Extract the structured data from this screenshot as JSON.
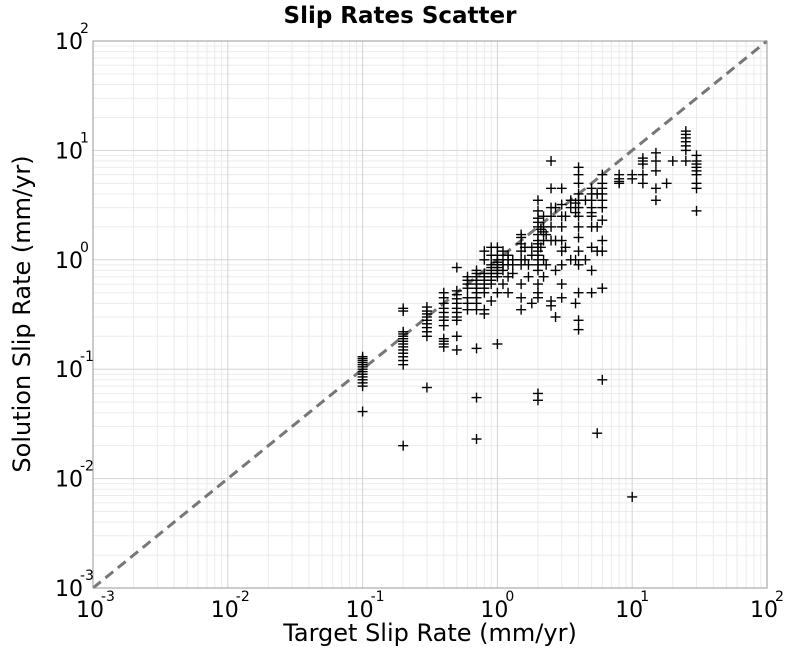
{
  "chart_data": {
    "type": "scatter",
    "title": "Slip Rates Scatter",
    "xlabel": "Target Slip Rate (mm/yr)",
    "ylabel": "Solution Slip Rate (mm/yr)",
    "xscale": "log",
    "yscale": "log",
    "xlim": [
      0.001,
      100
    ],
    "ylim": [
      0.001,
      100
    ],
    "grid": true,
    "legend": "none",
    "marker": "+",
    "marker_color": "#000000",
    "reference_line": {
      "style": "dashed",
      "color": "#777777",
      "from": [
        0.001,
        0.001
      ],
      "to": [
        100,
        100
      ]
    },
    "ticks": [
      {
        "base": "10",
        "exp": "-3",
        "value": 0.001
      },
      {
        "base": "10",
        "exp": "-2",
        "value": 0.01
      },
      {
        "base": "10",
        "exp": "-1",
        "value": 0.1
      },
      {
        "base": "10",
        "exp": "0",
        "value": 1
      },
      {
        "base": "10",
        "exp": "1",
        "value": 10
      },
      {
        "base": "10",
        "exp": "2",
        "value": 100
      }
    ],
    "points": [
      [
        0.1,
        0.07
      ],
      [
        0.1,
        0.075
      ],
      [
        0.1,
        0.08
      ],
      [
        0.1,
        0.085
      ],
      [
        0.1,
        0.09
      ],
      [
        0.1,
        0.095
      ],
      [
        0.1,
        0.1
      ],
      [
        0.1,
        0.105
      ],
      [
        0.1,
        0.11
      ],
      [
        0.1,
        0.115
      ],
      [
        0.1,
        0.12
      ],
      [
        0.1,
        0.125
      ],
      [
        0.1,
        0.13
      ],
      [
        0.1,
        0.041
      ],
      [
        0.2,
        0.13
      ],
      [
        0.2,
        0.14
      ],
      [
        0.2,
        0.15
      ],
      [
        0.2,
        0.16
      ],
      [
        0.2,
        0.17
      ],
      [
        0.2,
        0.18
      ],
      [
        0.2,
        0.19
      ],
      [
        0.2,
        0.2
      ],
      [
        0.2,
        0.21
      ],
      [
        0.2,
        0.22
      ],
      [
        0.2,
        0.34
      ],
      [
        0.2,
        0.36
      ],
      [
        0.2,
        0.11
      ],
      [
        0.2,
        0.12
      ],
      [
        0.2,
        0.02
      ],
      [
        0.3,
        0.22
      ],
      [
        0.3,
        0.24
      ],
      [
        0.3,
        0.26
      ],
      [
        0.3,
        0.28
      ],
      [
        0.3,
        0.3
      ],
      [
        0.3,
        0.32
      ],
      [
        0.3,
        0.34
      ],
      [
        0.3,
        0.37
      ],
      [
        0.3,
        0.2
      ],
      [
        0.3,
        0.068
      ],
      [
        0.4,
        0.25
      ],
      [
        0.4,
        0.28
      ],
      [
        0.4,
        0.3
      ],
      [
        0.4,
        0.33
      ],
      [
        0.4,
        0.36
      ],
      [
        0.4,
        0.4
      ],
      [
        0.4,
        0.45
      ],
      [
        0.4,
        0.5
      ],
      [
        0.4,
        0.19
      ],
      [
        0.4,
        0.16
      ],
      [
        0.4,
        0.17
      ],
      [
        0.4,
        0.18
      ],
      [
        0.5,
        0.28
      ],
      [
        0.5,
        0.3
      ],
      [
        0.5,
        0.33
      ],
      [
        0.5,
        0.36
      ],
      [
        0.5,
        0.4
      ],
      [
        0.5,
        0.44
      ],
      [
        0.5,
        0.48
      ],
      [
        0.5,
        0.52
      ],
      [
        0.5,
        0.85
      ],
      [
        0.5,
        0.2
      ],
      [
        0.5,
        0.15
      ],
      [
        0.6,
        0.35
      ],
      [
        0.6,
        0.4
      ],
      [
        0.6,
        0.45
      ],
      [
        0.6,
        0.55
      ],
      [
        0.6,
        0.6
      ],
      [
        0.6,
        0.65
      ],
      [
        0.6,
        0.7
      ],
      [
        0.7,
        0.4
      ],
      [
        0.7,
        0.45
      ],
      [
        0.7,
        0.5
      ],
      [
        0.7,
        0.55
      ],
      [
        0.7,
        0.6
      ],
      [
        0.7,
        0.65
      ],
      [
        0.7,
        0.7
      ],
      [
        0.7,
        0.75
      ],
      [
        0.7,
        0.8
      ],
      [
        0.7,
        0.35
      ],
      [
        0.7,
        0.055
      ],
      [
        0.7,
        0.023
      ],
      [
        0.7,
        0.155
      ],
      [
        0.8,
        0.5
      ],
      [
        0.8,
        0.55
      ],
      [
        0.8,
        0.6
      ],
      [
        0.8,
        0.65
      ],
      [
        0.8,
        0.7
      ],
      [
        0.8,
        0.75
      ],
      [
        0.8,
        1.0
      ],
      [
        0.8,
        1.2
      ],
      [
        0.8,
        0.35
      ],
      [
        0.8,
        0.32
      ],
      [
        0.9,
        0.6
      ],
      [
        0.9,
        0.65
      ],
      [
        0.9,
        0.7
      ],
      [
        0.9,
        0.75
      ],
      [
        0.9,
        0.8
      ],
      [
        0.9,
        0.85
      ],
      [
        0.9,
        0.9
      ],
      [
        0.9,
        1.1
      ],
      [
        0.9,
        1.3
      ],
      [
        0.9,
        0.42
      ],
      [
        1.0,
        0.7
      ],
      [
        1.0,
        0.75
      ],
      [
        1.0,
        0.8
      ],
      [
        1.0,
        0.85
      ],
      [
        1.0,
        0.9
      ],
      [
        1.0,
        0.95
      ],
      [
        1.0,
        1.0
      ],
      [
        1.0,
        1.1
      ],
      [
        1.0,
        1.3
      ],
      [
        1.0,
        0.5
      ],
      [
        1.0,
        0.17
      ],
      [
        1.1,
        0.8
      ],
      [
        1.1,
        0.9
      ],
      [
        1.1,
        1.0
      ],
      [
        1.1,
        1.2
      ],
      [
        1.1,
        0.6
      ],
      [
        1.2,
        0.9
      ],
      [
        1.2,
        1.0
      ],
      [
        1.2,
        1.1
      ],
      [
        1.2,
        0.7
      ],
      [
        1.2,
        0.5
      ],
      [
        1.3,
        0.75
      ],
      [
        1.3,
        0.9
      ],
      [
        1.3,
        1.0
      ],
      [
        1.5,
        0.9
      ],
      [
        1.5,
        1.0
      ],
      [
        1.5,
        1.2
      ],
      [
        1.5,
        1.4
      ],
      [
        1.5,
        1.6
      ],
      [
        1.5,
        1.7
      ],
      [
        1.5,
        0.6
      ],
      [
        1.5,
        0.35
      ],
      [
        1.5,
        0.45
      ],
      [
        1.6,
        1.0
      ],
      [
        1.6,
        1.3
      ],
      [
        1.7,
        0.7
      ],
      [
        1.7,
        0.9
      ],
      [
        1.8,
        0.4
      ],
      [
        1.8,
        1.1
      ],
      [
        1.8,
        1.3
      ],
      [
        2.0,
        0.8
      ],
      [
        2.0,
        0.9
      ],
      [
        2.0,
        1.0
      ],
      [
        2.0,
        1.1
      ],
      [
        2.0,
        1.2
      ],
      [
        2.0,
        1.3
      ],
      [
        2.0,
        1.4
      ],
      [
        2.0,
        1.5
      ],
      [
        2.0,
        1.7
      ],
      [
        2.0,
        2.0
      ],
      [
        2.0,
        2.2
      ],
      [
        2.0,
        2.4
      ],
      [
        2.0,
        2.8
      ],
      [
        2.0,
        3.5
      ],
      [
        2.0,
        0.6
      ],
      [
        2.0,
        0.5
      ],
      [
        2.0,
        0.45
      ],
      [
        2.0,
        0.06
      ],
      [
        2.0,
        0.052
      ],
      [
        2.1,
        1.3
      ],
      [
        2.1,
        1.9
      ],
      [
        2.2,
        1.0
      ],
      [
        2.2,
        1.5
      ],
      [
        2.2,
        2.0
      ],
      [
        2.2,
        2.5
      ],
      [
        2.2,
        0.7
      ],
      [
        2.2,
        1.8
      ],
      [
        2.3,
        0.9
      ],
      [
        2.3,
        1.7
      ],
      [
        2.5,
        0.38
      ],
      [
        2.5,
        0.42
      ],
      [
        2.5,
        1.5
      ],
      [
        2.5,
        2.0
      ],
      [
        2.5,
        2.5
      ],
      [
        2.5,
        3.0
      ],
      [
        2.5,
        4.5
      ],
      [
        2.5,
        8.0
      ],
      [
        2.7,
        0.3
      ],
      [
        2.7,
        0.8
      ],
      [
        2.7,
        1.5
      ],
      [
        2.7,
        3.0
      ],
      [
        3.0,
        0.6
      ],
      [
        3.0,
        0.9
      ],
      [
        3.0,
        1.2
      ],
      [
        3.0,
        1.5
      ],
      [
        3.0,
        2.0
      ],
      [
        3.0,
        2.5
      ],
      [
        3.0,
        3.2
      ],
      [
        3.0,
        4.5
      ],
      [
        3.0,
        0.45
      ],
      [
        3.2,
        1.3
      ],
      [
        3.2,
        2.5
      ],
      [
        3.5,
        1.0
      ],
      [
        3.5,
        3.0
      ],
      [
        3.5,
        3.5
      ],
      [
        3.8,
        0.4
      ],
      [
        3.8,
        1.0
      ],
      [
        3.8,
        2.7
      ],
      [
        3.8,
        3.3
      ],
      [
        4.0,
        0.28
      ],
      [
        4.0,
        0.5
      ],
      [
        4.0,
        0.9
      ],
      [
        4.0,
        1.2
      ],
      [
        4.0,
        1.6
      ],
      [
        4.0,
        2.0
      ],
      [
        4.0,
        2.5
      ],
      [
        4.0,
        3.0
      ],
      [
        4.0,
        3.5
      ],
      [
        4.0,
        4.0
      ],
      [
        4.0,
        5.0
      ],
      [
        4.0,
        6.0
      ],
      [
        4.0,
        7.0
      ],
      [
        4.0,
        0.23
      ],
      [
        4.5,
        1.0
      ],
      [
        4.5,
        3.5
      ],
      [
        5.0,
        0.8
      ],
      [
        5.0,
        1.3
      ],
      [
        5.0,
        2.0
      ],
      [
        5.0,
        2.5
      ],
      [
        5.0,
        3.0
      ],
      [
        5.0,
        3.5
      ],
      [
        5.0,
        4.0
      ],
      [
        5.0,
        4.5
      ],
      [
        5.0,
        0.5
      ],
      [
        5.0,
        2.7
      ],
      [
        5.5,
        1.2
      ],
      [
        5.5,
        2.0
      ],
      [
        5.5,
        4.0
      ],
      [
        5.5,
        0.026
      ],
      [
        6.0,
        1.5
      ],
      [
        6.0,
        2.3
      ],
      [
        6.0,
        3.0
      ],
      [
        6.0,
        3.5
      ],
      [
        6.0,
        4.0
      ],
      [
        6.0,
        4.5
      ],
      [
        6.0,
        5.0
      ],
      [
        6.0,
        6.0
      ],
      [
        6.0,
        0.55
      ],
      [
        6.0,
        0.08
      ],
      [
        6.0,
        1.2
      ],
      [
        8.0,
        5.0
      ],
      [
        8.0,
        5.5
      ],
      [
        8.0,
        6.0
      ],
      [
        8.0,
        5.2
      ],
      [
        10.0,
        5.5
      ],
      [
        10.0,
        6.0
      ],
      [
        10.0,
        0.0068
      ],
      [
        12.0,
        7.5
      ],
      [
        12.0,
        8.0
      ],
      [
        12.0,
        8.5
      ],
      [
        12.0,
        6.0
      ],
      [
        12.0,
        5.0
      ],
      [
        15.0,
        8.0
      ],
      [
        15.0,
        9.5
      ],
      [
        15.0,
        3.5
      ],
      [
        15.0,
        4.5
      ],
      [
        15.0,
        6.5
      ],
      [
        18.0,
        5.0
      ],
      [
        20.0,
        8.0
      ],
      [
        25.0,
        11.0
      ],
      [
        25.0,
        12.0
      ],
      [
        25.0,
        13.0
      ],
      [
        25.0,
        14.0
      ],
      [
        25.0,
        15.0
      ],
      [
        25.0,
        10.0
      ],
      [
        25.0,
        8.0
      ],
      [
        30.0,
        9.0
      ],
      [
        30.0,
        8.0
      ],
      [
        30.0,
        7.0
      ],
      [
        30.0,
        6.0
      ],
      [
        30.0,
        5.0
      ],
      [
        30.0,
        4.5
      ],
      [
        30.0,
        2.8
      ],
      [
        30.0,
        7.5
      ],
      [
        30.0,
        6.5
      ]
    ]
  }
}
